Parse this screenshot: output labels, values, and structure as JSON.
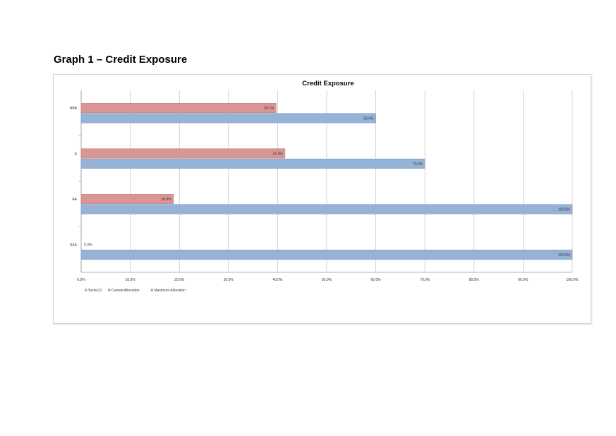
{
  "page": {
    "heading": "Graph 1 – Credit Exposure"
  },
  "chart_data": {
    "type": "bar",
    "orientation": "horizontal",
    "title": "Credit Exposure",
    "xlabel": "",
    "ylabel": "",
    "xlim": [
      0,
      100
    ],
    "x_ticks": [
      "0.0%",
      "10.0%",
      "20.0%",
      "30.0%",
      "40.0%",
      "50.0%",
      "60.0%",
      "70.0%",
      "80.0%",
      "90.0%",
      "100.0%"
    ],
    "categories": [
      "BBB",
      "A",
      "AA",
      "AAA"
    ],
    "series": [
      {
        "name": "Current Allocation",
        "values": [
          39.7,
          41.5,
          18.8,
          0.0
        ],
        "labels": [
          "39.7%",
          "41.5%",
          "18.8%",
          "0.0%"
        ],
        "color": "#d99594"
      },
      {
        "name": "Maximum Allocation",
        "values": [
          60.0,
          70.0,
          100.0,
          100.0
        ],
        "labels": [
          "60.0%",
          "70.0%",
          "100.0%",
          "100.0%"
        ],
        "color": "#95b3d7"
      }
    ],
    "legend": {
      "position": "bottom-left",
      "entries": [
        {
          "label": "Series11",
          "color": "#95b3d7"
        },
        {
          "label": "Current Allocation",
          "color": "#d99594"
        },
        {
          "label": "Maximum Allocation",
          "color": "#95b3d7"
        }
      ]
    },
    "grid": true
  }
}
